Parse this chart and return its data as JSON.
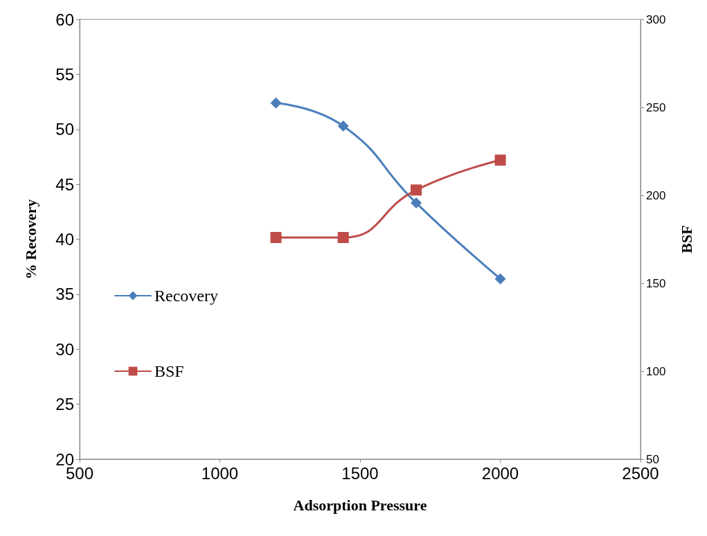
{
  "chart_data": {
    "type": "line",
    "xlabel": "Adsorption Pressure",
    "ylabel": "% Recovery",
    "y2label": "BSF",
    "x": [
      1200,
      1440,
      1700,
      2000
    ],
    "series": [
      {
        "name": "Recovery",
        "color": "#4a7ebb",
        "marker": "diamond",
        "values": [
          52.4,
          50.3,
          43.3,
          36.4
        ]
      },
      {
        "name": "BSF",
        "color": "#be4b48",
        "marker": "square",
        "axis": "y2",
        "values": [
          176,
          176,
          203,
          220
        ]
      }
    ],
    "xlim": [
      500,
      2500
    ],
    "xticks": [
      500,
      1000,
      1500,
      2000,
      2500
    ],
    "ylim": [
      20,
      60
    ],
    "yticks": [
      20,
      25,
      30,
      35,
      40,
      45,
      50,
      55,
      60
    ],
    "y2lim": [
      50,
      300
    ],
    "y2ticks": [
      50,
      100,
      150,
      200,
      250,
      300
    ],
    "grid": false,
    "legend": "left",
    "line_style": "solid"
  }
}
